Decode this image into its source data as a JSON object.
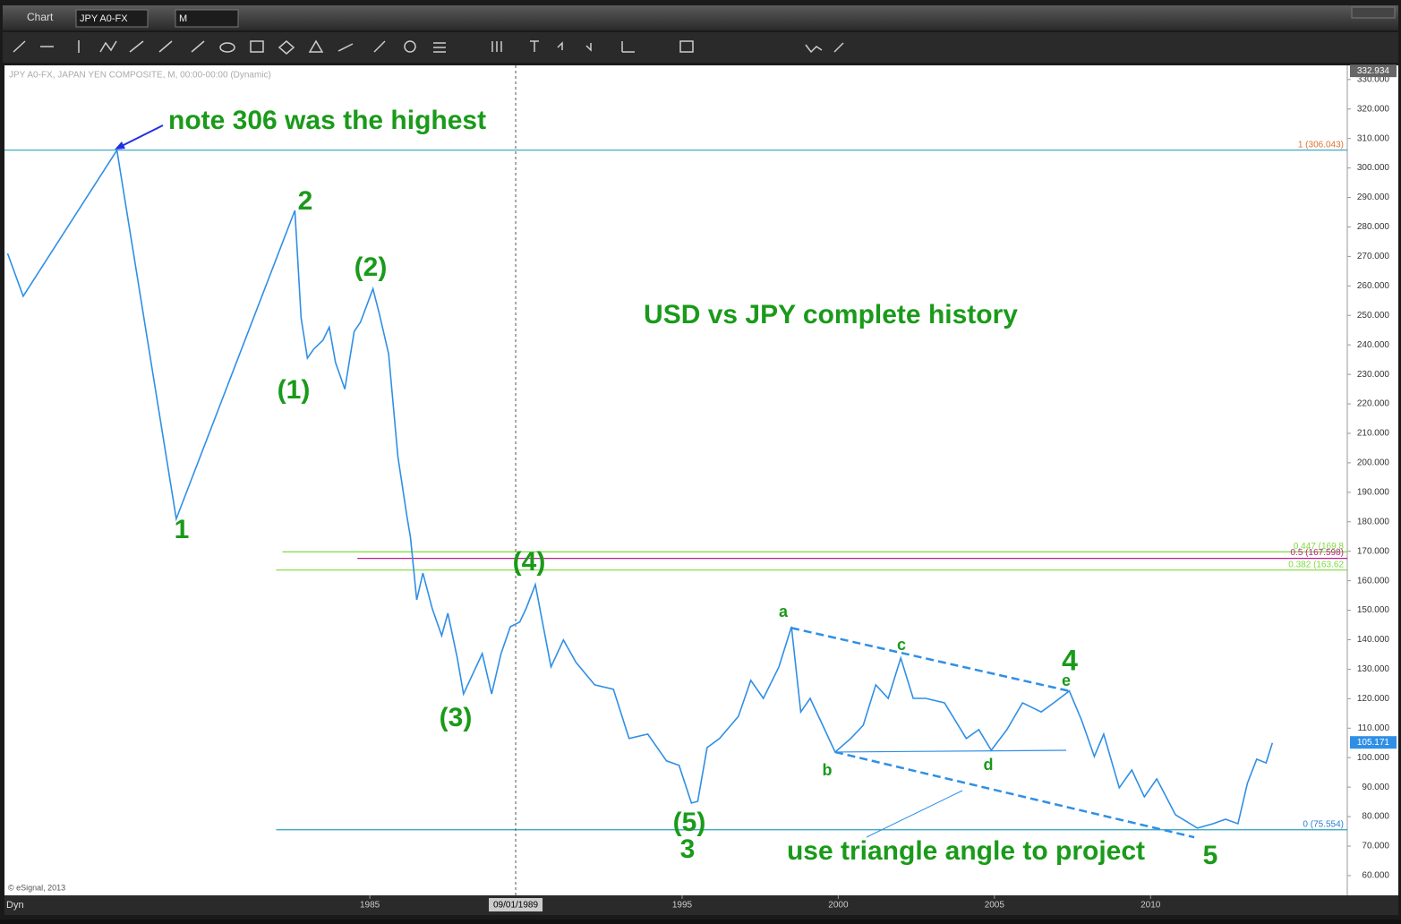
{
  "window": {
    "title": "Chart",
    "symbol": "JPY A0-FX",
    "interval": "M"
  },
  "chart_data": {
    "type": "line",
    "info": "JPY A0-FX, JAPAN YEN COMPOSITE, M, 00:00-00:00 (Dynamic)",
    "copyright": "© eSignal, 2013",
    "mode": "Dyn",
    "series": [
      {
        "name": "JPY A0-FX",
        "color": "#2f8fe6",
        "x": [
          1973.4,
          1973.9,
          1976.9,
          1978.8,
          1982.6,
          1982.8,
          1983.0,
          1983.2,
          1983.5,
          1983.7,
          1983.9,
          1984.2,
          1984.5,
          1984.7,
          1985.1,
          1985.3,
          1985.6,
          1985.9,
          1986.2,
          1986.3,
          1986.5,
          1986.7,
          1987.0,
          1987.3,
          1987.5,
          1987.8,
          1988.0,
          1988.2,
          1988.6,
          1988.9,
          1989.2,
          1989.5,
          1989.8,
          1990.0,
          1990.3,
          1990.5,
          1990.8,
          1991.2,
          1991.6,
          1992.2,
          1992.8,
          1993.3,
          1993.9,
          1994.5,
          1994.9,
          1995.3,
          1995.5,
          1995.8,
          1996.2,
          1996.8,
          1997.2,
          1997.6,
          1998.1,
          1998.5,
          1998.8,
          1999.1,
          1999.5,
          1999.9,
          2000.4,
          2000.8,
          2001.2,
          2001.6,
          2002.0,
          2002.4,
          2002.8,
          2003.4,
          2004.1,
          2004.5,
          2004.9,
          2005.4,
          2005.9,
          2006.5,
          2006.9,
          2007.4,
          2007.8,
          2008.2,
          2008.5,
          2009.0,
          2009.4,
          2009.8,
          2010.2,
          2010.8,
          2011.5,
          2012.0,
          2012.4,
          2012.8,
          2013.1,
          2013.4,
          2013.7,
          2013.9
        ],
        "values": [
          271,
          256.5,
          306,
          181,
          285.6,
          249,
          235.5,
          238.5,
          241.6,
          246,
          234,
          225,
          244.6,
          247.7,
          259,
          250.7,
          237,
          202,
          181,
          174.8,
          153.5,
          162.6,
          150.5,
          141.4,
          149,
          133.8,
          121.6,
          126.2,
          135.3,
          121.6,
          135.3,
          144.4,
          146,
          150.5,
          158.7,
          147.5,
          130.8,
          139.9,
          132.3,
          124.7,
          123.2,
          106.5,
          108,
          98.9,
          97.4,
          84.6,
          85.2,
          103.4,
          106.5,
          114,
          126.2,
          120.1,
          130.8,
          144.4,
          115.5,
          120.1,
          111,
          101.9,
          106.5,
          111,
          124.7,
          120.1,
          133.8,
          120.1,
          120.1,
          118.6,
          106.5,
          109.5,
          102.5,
          109.5,
          118.6,
          115.5,
          118.6,
          122.6,
          112.5,
          100.4,
          108,
          89.8,
          95.8,
          86.7,
          92.8,
          80.6,
          76.1,
          77.6,
          79.1,
          77.6,
          91.3,
          99.5,
          98.2,
          105
        ]
      }
    ],
    "xlim": [
      1973.3,
      2016.3
    ],
    "ylim": [
      53.3,
      334.8
    ],
    "xticks": [
      1985,
      1995,
      2000,
      2005,
      2010
    ],
    "yticks": [
      {
        "value": 60,
        "label": "60.000"
      },
      {
        "value": 70,
        "label": "70.000"
      },
      {
        "value": 80,
        "label": "80.000"
      },
      {
        "value": 90,
        "label": "90.000"
      },
      {
        "value": 100,
        "label": "100.000"
      },
      {
        "value": 110,
        "label": "110.000"
      },
      {
        "value": 120,
        "label": "120.000"
      },
      {
        "value": 130,
        "label": "130.000"
      },
      {
        "value": 140,
        "label": "140.000"
      },
      {
        "value": 150,
        "label": "150.000"
      },
      {
        "value": 160,
        "label": "160.000"
      },
      {
        "value": 170,
        "label": "170.000"
      },
      {
        "value": 180,
        "label": "180.000"
      },
      {
        "value": 190,
        "label": "190.000"
      },
      {
        "value": 200,
        "label": "200.000"
      },
      {
        "value": 210,
        "label": "210.000"
      },
      {
        "value": 220,
        "label": "220.000"
      },
      {
        "value": 230,
        "label": "230.000"
      },
      {
        "value": 240,
        "label": "240.000"
      },
      {
        "value": 250,
        "label": "250.000"
      },
      {
        "value": 260,
        "label": "260.000"
      },
      {
        "value": 270,
        "label": "270.000"
      },
      {
        "value": 280,
        "label": "280.000"
      },
      {
        "value": 290,
        "label": "290.000"
      },
      {
        "value": 300,
        "label": "300.000"
      },
      {
        "value": 310,
        "label": "310.000"
      },
      {
        "value": 320,
        "label": "320.000"
      },
      {
        "value": 330,
        "label": "330.000"
      }
    ],
    "crosshair": {
      "x": 1989.67,
      "label": "09/01/1989"
    },
    "axis_high": 332.934,
    "last_price": 105.171,
    "levels": [
      {
        "value": 306.043,
        "label": "1 (306.043)",
        "color": "#2aa0c0",
        "label_color": "#e07030",
        "from": 1973.3
      },
      {
        "value": 169.8,
        "label": "0.447 (169.8",
        "color": "#7ddc3a",
        "label_color": "#7ddc3a",
        "from": 1982.2
      },
      {
        "value": 167.598,
        "label": "0.5 (167.598)",
        "color": "#c0208a",
        "label_color": "#c0208a",
        "from": 1984.6
      },
      {
        "value": 163.62,
        "label": "0.382 (163.62",
        "color": "#7ddc3a",
        "label_color": "#7ddc3a",
        "from": 1982.0
      },
      {
        "value": 75.554,
        "label": "0 (75.554)",
        "color": "#2aa0c0",
        "label_color": "#2a80d0",
        "from": 1982.0
      }
    ],
    "trendlines": [
      {
        "x": [
          1998.5,
          2007.4
        ],
        "y": [
          144,
          122.6
        ],
        "style": "dashed"
      },
      {
        "x": [
          1999.9,
          2011.4
        ],
        "y": [
          101.9,
          73
        ],
        "style": "dashed"
      },
      {
        "x": [
          1999.9,
          2007.3
        ],
        "y": [
          101.9,
          102.5
        ],
        "style": "solid"
      }
    ],
    "annotations": [
      "note 306 was the highest",
      "2",
      "(2)",
      "(1)",
      "1",
      "USD vs JPY complete history",
      "(4)",
      "(3)",
      "(5)",
      "3",
      "a",
      "b",
      "c",
      "d",
      "e",
      "4",
      "5",
      "use triangle angle to project"
    ]
  }
}
